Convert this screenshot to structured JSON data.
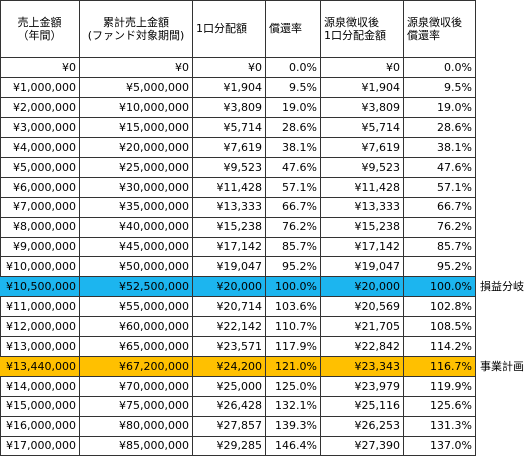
{
  "table": {
    "header": [
      [
        "売上金額",
        "（年間）"
      ],
      [
        "累計売上金額",
        "(ファンド対象期間)"
      ],
      [
        "1口分配額"
      ],
      [
        "償還率"
      ],
      [
        "源泉徴収後",
        "1口分配金額"
      ],
      [
        "源泉徴収後",
        "償還率"
      ]
    ],
    "rows": [
      {
        "cells": [
          "¥0",
          "¥0",
          "¥0",
          "0.0%",
          "¥0",
          "0.0%"
        ]
      },
      {
        "cells": [
          "¥1,000,000",
          "¥5,000,000",
          "¥1,904",
          "9.5%",
          "¥1,904",
          "9.5%"
        ]
      },
      {
        "cells": [
          "¥2,000,000",
          "¥10,000,000",
          "¥3,809",
          "19.0%",
          "¥3,809",
          "19.0%"
        ]
      },
      {
        "cells": [
          "¥3,000,000",
          "¥15,000,000",
          "¥5,714",
          "28.6%",
          "¥5,714",
          "28.6%"
        ]
      },
      {
        "cells": [
          "¥4,000,000",
          "¥20,000,000",
          "¥7,619",
          "38.1%",
          "¥7,619",
          "38.1%"
        ]
      },
      {
        "cells": [
          "¥5,000,000",
          "¥25,000,000",
          "¥9,523",
          "47.6%",
          "¥9,523",
          "47.6%"
        ]
      },
      {
        "cells": [
          "¥6,000,000",
          "¥30,000,000",
          "¥11,428",
          "57.1%",
          "¥11,428",
          "57.1%"
        ]
      },
      {
        "cells": [
          "¥7,000,000",
          "¥35,000,000",
          "¥13,333",
          "66.7%",
          "¥13,333",
          "66.7%"
        ]
      },
      {
        "cells": [
          "¥8,000,000",
          "¥40,000,000",
          "¥15,238",
          "76.2%",
          "¥15,238",
          "76.2%"
        ]
      },
      {
        "cells": [
          "¥9,000,000",
          "¥45,000,000",
          "¥17,142",
          "85.7%",
          "¥17,142",
          "85.7%"
        ]
      },
      {
        "cells": [
          "¥10,000,000",
          "¥50,000,000",
          "¥19,047",
          "95.2%",
          "¥19,047",
          "95.2%"
        ]
      },
      {
        "cells": [
          "¥10,500,000",
          "¥52,500,000",
          "¥20,000",
          "100.0%",
          "¥20,000",
          "100.0%"
        ],
        "note": "損益分岐",
        "highlight": "#1cb5ef"
      },
      {
        "cells": [
          "¥11,000,000",
          "¥55,000,000",
          "¥20,714",
          "103.6%",
          "¥20,569",
          "102.8%"
        ]
      },
      {
        "cells": [
          "¥12,000,000",
          "¥60,000,000",
          "¥22,142",
          "110.7%",
          "¥21,705",
          "108.5%"
        ]
      },
      {
        "cells": [
          "¥13,000,000",
          "¥65,000,000",
          "¥23,571",
          "117.9%",
          "¥22,842",
          "114.2%"
        ]
      },
      {
        "cells": [
          "¥13,440,000",
          "¥67,200,000",
          "¥24,200",
          "121.0%",
          "¥23,343",
          "116.7%"
        ],
        "note": "事業計画",
        "highlight": "#ffc000"
      },
      {
        "cells": [
          "¥14,000,000",
          "¥70,000,000",
          "¥25,000",
          "125.0%",
          "¥23,979",
          "119.9%"
        ]
      },
      {
        "cells": [
          "¥15,000,000",
          "¥75,000,000",
          "¥26,428",
          "132.1%",
          "¥25,116",
          "125.6%"
        ]
      },
      {
        "cells": [
          "¥16,000,000",
          "¥80,000,000",
          "¥27,857",
          "139.3%",
          "¥26,253",
          "131.3%"
        ]
      },
      {
        "cells": [
          "¥17,000,000",
          "¥85,000,000",
          "¥29,285",
          "146.4%",
          "¥27,390",
          "137.0%"
        ]
      }
    ]
  }
}
